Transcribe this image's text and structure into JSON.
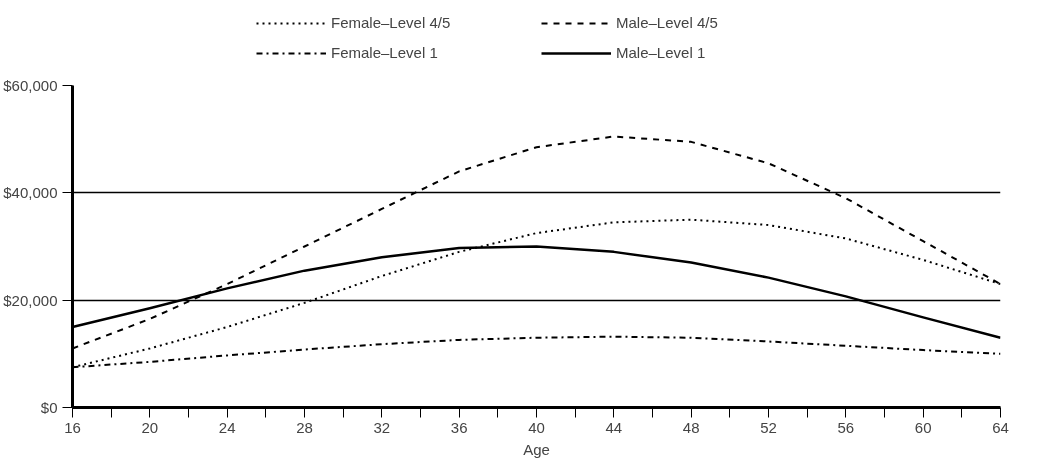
{
  "chart_data": {
    "type": "line",
    "xlabel": "Age",
    "x": [
      16,
      20,
      24,
      28,
      32,
      36,
      40,
      44,
      48,
      52,
      56,
      60,
      64
    ],
    "series": [
      {
        "name": "Female–Level 4/5",
        "color": "#000000",
        "line_style": "dotted",
        "values": [
          7500,
          11000,
          15000,
          19500,
          24500,
          29000,
          32500,
          34500,
          35000,
          34000,
          31500,
          27500,
          23000
        ]
      },
      {
        "name": "Female–Level 1",
        "color": "#000000",
        "line_style": "dashdot",
        "values": [
          7500,
          8500,
          9700,
          10800,
          11800,
          12600,
          13000,
          13200,
          13000,
          12300,
          11500,
          10700,
          10000
        ]
      },
      {
        "name": "Male–Level 4/5",
        "color": "#000000",
        "line_style": "dashed",
        "values": [
          11000,
          16500,
          23000,
          30000,
          37000,
          44000,
          48500,
          50500,
          49500,
          45500,
          39000,
          31000,
          23000
        ]
      },
      {
        "name": "Male–Level 1",
        "color": "#000000",
        "line_style": "solid",
        "values": [
          15000,
          18500,
          22200,
          25500,
          28000,
          29700,
          30000,
          29000,
          27000,
          24200,
          20700,
          16800,
          13000
        ]
      }
    ],
    "xlim": [
      16,
      64
    ],
    "ylim": [
      0,
      60000
    ],
    "xticks": [
      16,
      {
        "value": 18,
        "label": null
      },
      20,
      {
        "value": 22,
        "label": null
      },
      24,
      {
        "value": 26,
        "label": null
      },
      28,
      {
        "value": 30,
        "label": null
      },
      32,
      {
        "value": 34,
        "label": null
      },
      36,
      {
        "value": 38,
        "label": null
      },
      40,
      {
        "value": 42,
        "label": null
      },
      44,
      {
        "value": 46,
        "label": null
      },
      48,
      {
        "value": 50,
        "label": null
      },
      52,
      {
        "value": 54,
        "label": null
      },
      56,
      {
        "value": 58,
        "label": null
      },
      60,
      {
        "value": 62,
        "label": null
      },
      64
    ],
    "yticks": [
      {
        "value": 0,
        "label": "$0"
      },
      {
        "value": 20000,
        "label": "$20,000"
      },
      {
        "value": 40000,
        "label": "$40,000"
      },
      {
        "value": 60000,
        "label": "$60,000"
      }
    ],
    "grid": "y",
    "legend": "top",
    "marker": "none"
  }
}
